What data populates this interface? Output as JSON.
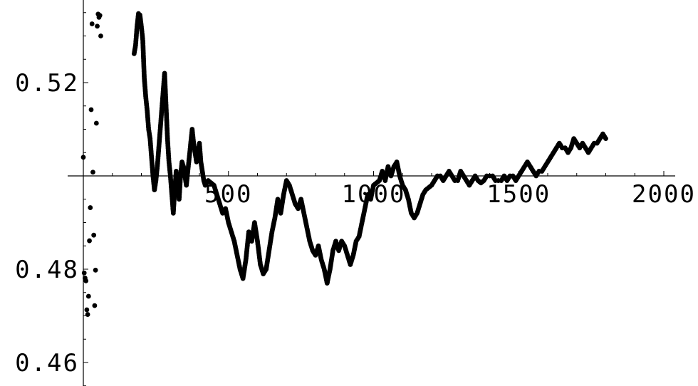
{
  "chart_data": {
    "type": "scatter",
    "title": "",
    "xlabel": "",
    "ylabel": "",
    "xlim": [
      -40,
      2040
    ],
    "ylim": [
      0.4553,
      0.5353
    ],
    "x_axis_crossing_y": 0.5,
    "grid": false,
    "legend": "none",
    "marker_color": "#000000",
    "x_ticks": [
      {
        "value": 500,
        "label": "500"
      },
      {
        "value": 1000,
        "label": "1000"
      },
      {
        "value": 1500,
        "label": "1500"
      },
      {
        "value": 2000,
        "label": "2000"
      }
    ],
    "y_ticks": [
      {
        "value": 0.46,
        "label": "0.46"
      },
      {
        "value": 0.48,
        "label": "0.48"
      },
      {
        "value": 0.52,
        "label": "0.52"
      }
    ],
    "series": [
      {
        "points": [
          [
            0,
            0.504
          ],
          [
            3,
            0.4792
          ],
          [
            6,
            0.4781
          ],
          [
            9,
            0.4775
          ],
          [
            12,
            0.4713
          ],
          [
            15,
            0.4703
          ],
          [
            18,
            0.4742
          ],
          [
            21,
            0.4861
          ],
          [
            24,
            0.4932
          ],
          [
            27,
            0.5142
          ],
          [
            30,
            0.5326
          ],
          [
            33,
            0.5008
          ],
          [
            36,
            0.4873
          ],
          [
            39,
            0.4722
          ],
          [
            42,
            0.4798
          ],
          [
            45,
            0.5113
          ],
          [
            48,
            0.5321
          ],
          [
            51,
            0.5347
          ],
          [
            54,
            0.534
          ],
          [
            57,
            0.5344
          ],
          [
            60,
            0.53
          ],
          [
            175,
            0.5262
          ],
          [
            180,
            0.528
          ],
          [
            185,
            0.532
          ],
          [
            190,
            0.5348
          ],
          [
            195,
            0.5345
          ],
          [
            200,
            0.532
          ],
          [
            205,
            0.529
          ],
          [
            210,
            0.521
          ],
          [
            215,
            0.517
          ],
          [
            220,
            0.514
          ],
          [
            225,
            0.51
          ],
          [
            230,
            0.508
          ],
          [
            235,
            0.504
          ],
          [
            240,
            0.5
          ],
          [
            245,
            0.497
          ],
          [
            250,
            0.499
          ],
          [
            255,
            0.502
          ],
          [
            260,
            0.506
          ],
          [
            265,
            0.51
          ],
          [
            270,
            0.514
          ],
          [
            275,
            0.518
          ],
          [
            280,
            0.522
          ],
          [
            285,
            0.515
          ],
          [
            290,
            0.508
          ],
          [
            295,
            0.503
          ],
          [
            300,
            0.5
          ],
          [
            305,
            0.496
          ],
          [
            310,
            0.492
          ],
          [
            315,
            0.497
          ],
          [
            320,
            0.501
          ],
          [
            325,
            0.499
          ],
          [
            330,
            0.495
          ],
          [
            335,
            0.5
          ],
          [
            340,
            0.503
          ],
          [
            345,
            0.502
          ],
          [
            350,
            0.5
          ],
          [
            355,
            0.498
          ],
          [
            360,
            0.501
          ],
          [
            365,
            0.504
          ],
          [
            370,
            0.507
          ],
          [
            375,
            0.51
          ],
          [
            380,
            0.507
          ],
          [
            385,
            0.505
          ],
          [
            390,
            0.503
          ],
          [
            395,
            0.505
          ],
          [
            400,
            0.507
          ],
          [
            405,
            0.503
          ],
          [
            410,
            0.501
          ],
          [
            415,
            0.499
          ],
          [
            420,
            0.498
          ],
          [
            430,
            0.499
          ],
          [
            440,
            0.4985
          ],
          [
            450,
            0.498
          ],
          [
            460,
            0.496
          ],
          [
            470,
            0.494
          ],
          [
            480,
            0.492
          ],
          [
            490,
            0.493
          ],
          [
            500,
            0.49
          ],
          [
            510,
            0.488
          ],
          [
            520,
            0.486
          ],
          [
            530,
            0.483
          ],
          [
            540,
            0.48
          ],
          [
            550,
            0.478
          ],
          [
            560,
            0.482
          ],
          [
            570,
            0.488
          ],
          [
            580,
            0.486
          ],
          [
            590,
            0.49
          ],
          [
            600,
            0.486
          ],
          [
            610,
            0.481
          ],
          [
            620,
            0.479
          ],
          [
            630,
            0.48
          ],
          [
            640,
            0.484
          ],
          [
            650,
            0.488
          ],
          [
            660,
            0.491
          ],
          [
            670,
            0.495
          ],
          [
            680,
            0.492
          ],
          [
            690,
            0.496
          ],
          [
            700,
            0.499
          ],
          [
            710,
            0.498
          ],
          [
            720,
            0.496
          ],
          [
            730,
            0.494
          ],
          [
            740,
            0.493
          ],
          [
            750,
            0.495
          ],
          [
            760,
            0.492
          ],
          [
            770,
            0.489
          ],
          [
            780,
            0.486
          ],
          [
            790,
            0.484
          ],
          [
            800,
            0.483
          ],
          [
            810,
            0.485
          ],
          [
            820,
            0.482
          ],
          [
            830,
            0.48
          ],
          [
            840,
            0.477
          ],
          [
            850,
            0.48
          ],
          [
            860,
            0.484
          ],
          [
            870,
            0.486
          ],
          [
            880,
            0.484
          ],
          [
            890,
            0.486
          ],
          [
            900,
            0.485
          ],
          [
            910,
            0.483
          ],
          [
            920,
            0.481
          ],
          [
            930,
            0.483
          ],
          [
            940,
            0.486
          ],
          [
            950,
            0.487
          ],
          [
            960,
            0.49
          ],
          [
            970,
            0.493
          ],
          [
            980,
            0.496
          ],
          [
            990,
            0.495
          ],
          [
            1000,
            0.498
          ],
          [
            1010,
            0.4985
          ],
          [
            1020,
            0.499
          ],
          [
            1030,
            0.501
          ],
          [
            1040,
            0.499
          ],
          [
            1050,
            0.502
          ],
          [
            1060,
            0.5
          ],
          [
            1070,
            0.502
          ],
          [
            1080,
            0.503
          ],
          [
            1090,
            0.5
          ],
          [
            1100,
            0.498
          ],
          [
            1110,
            0.497
          ],
          [
            1120,
            0.495
          ],
          [
            1130,
            0.492
          ],
          [
            1140,
            0.491
          ],
          [
            1150,
            0.492
          ],
          [
            1160,
            0.494
          ],
          [
            1170,
            0.496
          ],
          [
            1180,
            0.497
          ],
          [
            1190,
            0.4975
          ],
          [
            1200,
            0.498
          ],
          [
            1210,
            0.499
          ],
          [
            1220,
            0.5
          ],
          [
            1230,
            0.5
          ],
          [
            1240,
            0.499
          ],
          [
            1250,
            0.5
          ],
          [
            1260,
            0.501
          ],
          [
            1270,
            0.5
          ],
          [
            1280,
            0.499
          ],
          [
            1290,
            0.499
          ],
          [
            1300,
            0.501
          ],
          [
            1310,
            0.5
          ],
          [
            1320,
            0.499
          ],
          [
            1330,
            0.498
          ],
          [
            1340,
            0.499
          ],
          [
            1350,
            0.5
          ],
          [
            1360,
            0.499
          ],
          [
            1370,
            0.4985
          ],
          [
            1380,
            0.499
          ],
          [
            1390,
            0.5
          ],
          [
            1400,
            0.5
          ],
          [
            1410,
            0.5
          ],
          [
            1420,
            0.499
          ],
          [
            1430,
            0.499
          ],
          [
            1440,
            0.499
          ],
          [
            1450,
            0.5
          ],
          [
            1460,
            0.499
          ],
          [
            1470,
            0.5
          ],
          [
            1480,
            0.5
          ],
          [
            1490,
            0.499
          ],
          [
            1500,
            0.5
          ],
          [
            1510,
            0.501
          ],
          [
            1520,
            0.502
          ],
          [
            1530,
            0.503
          ],
          [
            1540,
            0.502
          ],
          [
            1550,
            0.501
          ],
          [
            1560,
            0.5
          ],
          [
            1570,
            0.501
          ],
          [
            1580,
            0.501
          ],
          [
            1590,
            0.502
          ],
          [
            1600,
            0.503
          ],
          [
            1610,
            0.504
          ],
          [
            1620,
            0.505
          ],
          [
            1630,
            0.506
          ],
          [
            1640,
            0.507
          ],
          [
            1650,
            0.506
          ],
          [
            1660,
            0.506
          ],
          [
            1670,
            0.505
          ],
          [
            1680,
            0.506
          ],
          [
            1690,
            0.508
          ],
          [
            1700,
            0.507
          ],
          [
            1710,
            0.506
          ],
          [
            1720,
            0.507
          ],
          [
            1730,
            0.506
          ],
          [
            1740,
            0.505
          ],
          [
            1750,
            0.506
          ],
          [
            1760,
            0.507
          ],
          [
            1770,
            0.507
          ],
          [
            1780,
            0.508
          ],
          [
            1790,
            0.509
          ],
          [
            1800,
            0.508
          ]
        ]
      }
    ]
  }
}
